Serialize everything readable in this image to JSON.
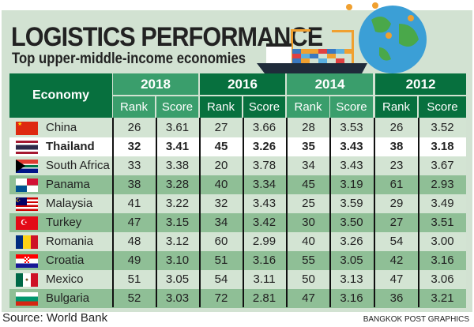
{
  "title": "LOGISTICS PERFORMANCE",
  "subtitle": "Top upper-middle-income economies",
  "source": "Source: World Bank",
  "credit": "BANGKOK POST GRAPHICS",
  "chart_data": {
    "type": "table",
    "economy_header": "Economy",
    "years": [
      "2018",
      "2016",
      "2014",
      "2012"
    ],
    "subheaders": [
      "Rank",
      "Score"
    ],
    "highlight": "Thailand",
    "rows": [
      {
        "economy": "China",
        "flag": "china-flag",
        "values": [
          "26",
          "3.61",
          "27",
          "3.66",
          "28",
          "3.53",
          "26",
          "3.52"
        ]
      },
      {
        "economy": "Thailand",
        "flag": "thailand-flag",
        "values": [
          "32",
          "3.41",
          "45",
          "3.26",
          "35",
          "3.43",
          "38",
          "3.18"
        ]
      },
      {
        "economy": "South Africa",
        "flag": "south-africa-flag",
        "values": [
          "33",
          "3.38",
          "20",
          "3.78",
          "34",
          "3.43",
          "23",
          "3.67"
        ]
      },
      {
        "economy": "Panama",
        "flag": "panama-flag",
        "values": [
          "38",
          "3.28",
          "40",
          "3.34",
          "45",
          "3.19",
          "61",
          "2.93"
        ]
      },
      {
        "economy": "Malaysia",
        "flag": "malaysia-flag",
        "values": [
          "41",
          "3.22",
          "32",
          "3.43",
          "25",
          "3.59",
          "29",
          "3.49"
        ]
      },
      {
        "economy": "Turkey",
        "flag": "turkey-flag",
        "values": [
          "47",
          "3.15",
          "34",
          "3.42",
          "30",
          "3.50",
          "27",
          "3.51"
        ]
      },
      {
        "economy": "Romania",
        "flag": "romania-flag",
        "values": [
          "48",
          "3.12",
          "60",
          "2.99",
          "40",
          "3.26",
          "54",
          "3.00"
        ]
      },
      {
        "economy": "Croatia",
        "flag": "croatia-flag",
        "values": [
          "49",
          "3.10",
          "51",
          "3.16",
          "55",
          "3.05",
          "42",
          "3.16"
        ]
      },
      {
        "economy": "Mexico",
        "flag": "mexico-flag",
        "values": [
          "51",
          "3.05",
          "54",
          "3.11",
          "50",
          "3.13",
          "47",
          "3.06"
        ]
      },
      {
        "economy": "Bulgaria",
        "flag": "bulgaria-flag",
        "values": [
          "52",
          "3.03",
          "72",
          "2.81",
          "47",
          "3.16",
          "36",
          "3.21"
        ]
      }
    ]
  },
  "colors": {
    "light_header": "#3a9e6c",
    "dark_header": "#07703e",
    "row_light": "#d3e4d3",
    "row_dark": "#8fbf96",
    "highlight": "#ffffff"
  }
}
